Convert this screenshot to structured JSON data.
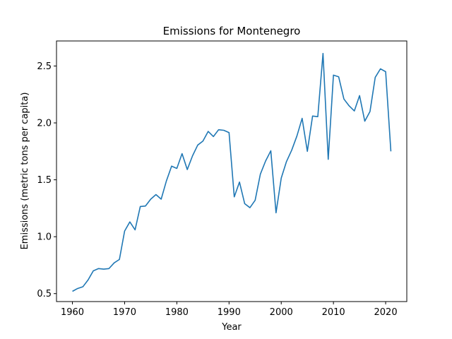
{
  "chart_data": {
    "type": "line",
    "title": "Emissions for Montenegro",
    "xlabel": "Year",
    "ylabel": "Emissions (metric tons per capita)",
    "xlim": [
      1956.95,
      2024.05
    ],
    "ylim": [
      0.43,
      2.72
    ],
    "xticks": [
      1960,
      1970,
      1980,
      1990,
      2000,
      2010,
      2020
    ],
    "yticks": [
      0.5,
      1.0,
      1.5,
      2.0,
      2.5
    ],
    "xtick_labels": [
      "1960",
      "1970",
      "1980",
      "1990",
      "2000",
      "2010",
      "2020"
    ],
    "ytick_labels": [
      "0.5",
      "1.0",
      "1.5",
      "2.0",
      "2.5"
    ],
    "grid": false,
    "color": "#1f77b4",
    "series": [
      {
        "name": "",
        "x": [
          1960,
          1961,
          1962,
          1963,
          1964,
          1965,
          1966,
          1967,
          1968,
          1969,
          1970,
          1971,
          1972,
          1973,
          1974,
          1975,
          1976,
          1977,
          1978,
          1979,
          1980,
          1981,
          1982,
          1983,
          1984,
          1985,
          1986,
          1987,
          1988,
          1989,
          1990,
          1991,
          1992,
          1993,
          1994,
          1995,
          1996,
          1997,
          1998,
          1999,
          2000,
          2001,
          2002,
          2003,
          2004,
          2005,
          2006,
          2007,
          2008,
          2009,
          2010,
          2011,
          2012,
          2013,
          2014,
          2015,
          2016,
          2017,
          2018,
          2019,
          2020,
          2021
        ],
        "y": [
          0.52,
          0.545,
          0.56,
          0.62,
          0.7,
          0.72,
          0.715,
          0.72,
          0.77,
          0.8,
          1.05,
          1.13,
          1.06,
          1.265,
          1.27,
          1.33,
          1.37,
          1.33,
          1.49,
          1.62,
          1.6,
          1.73,
          1.59,
          1.71,
          1.805,
          1.84,
          1.925,
          1.88,
          1.94,
          1.935,
          1.915,
          1.35,
          1.48,
          1.29,
          1.255,
          1.32,
          1.55,
          1.665,
          1.755,
          1.21,
          1.515,
          1.66,
          1.76,
          1.885,
          2.04,
          1.75,
          2.06,
          2.055,
          2.61,
          1.68,
          2.42,
          2.405,
          2.21,
          2.15,
          2.105,
          2.24,
          2.015,
          2.1,
          2.4,
          2.475,
          2.45,
          1.75
        ]
      }
    ]
  }
}
